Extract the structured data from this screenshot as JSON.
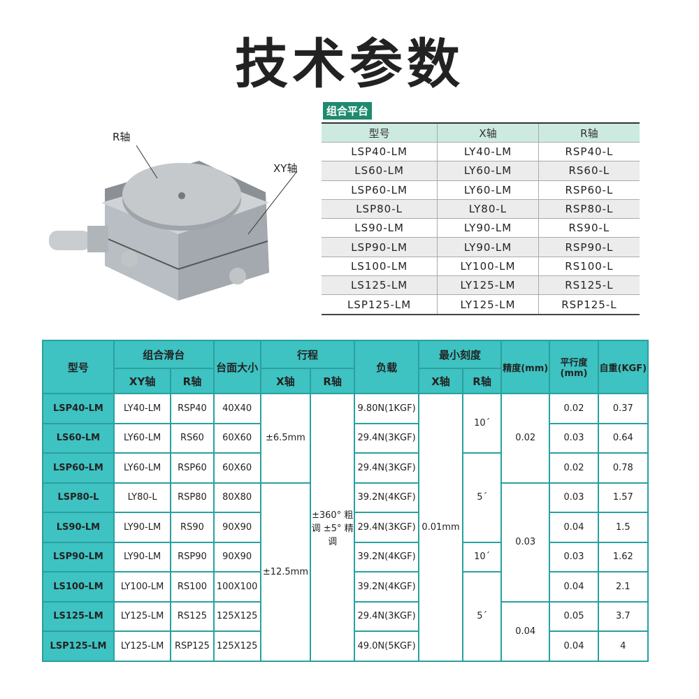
{
  "title": "技术参数",
  "combo": {
    "tag": "组合平台",
    "headers": [
      "型号",
      "X轴",
      "R轴"
    ],
    "rows": [
      [
        "LSP40-LM",
        "LY40-LM",
        "RSP40-L"
      ],
      [
        "LS60-LM",
        "LY60-LM",
        "RS60-L"
      ],
      [
        "LSP60-LM",
        "LY60-LM",
        "RSP60-L"
      ],
      [
        "LSP80-L",
        "LY80-L",
        "RSP80-L"
      ],
      [
        "LS90-LM",
        "LY90-LM",
        "RS90-L"
      ],
      [
        "LSP90-LM",
        "LY90-LM",
        "RSP90-L"
      ],
      [
        "LS100-LM",
        "LY100-LM",
        "RS100-L"
      ],
      [
        "LS125-LM",
        "LY125-LM",
        "RS125-L"
      ],
      [
        "LSP125-LM",
        "LY125-LM",
        "RSP125-L"
      ]
    ]
  },
  "image": {
    "label_r": "R轴",
    "label_xy": "XY轴"
  },
  "spec": {
    "h": {
      "model": "型号",
      "combo": "组合滑台",
      "xy": "XY轴",
      "r": "R轴",
      "size": "台面大小",
      "travel": "行程",
      "tx": "X轴",
      "tr": "R轴",
      "load": "负载",
      "scale": "最小刻度",
      "sx": "X轴",
      "sr": "R轴",
      "precision": "精度(mm)",
      "parallel": "平行度(mm)",
      "weight": "自重(KGF)"
    },
    "rows": [
      {
        "model": "LSP40-LM",
        "xy": "LY40-LM",
        "r": "RSP40",
        "size": "40X40",
        "load": "9.80N(1KGF)",
        "parallel": "0.02",
        "weight": "0.37"
      },
      {
        "model": "LS60-LM",
        "xy": "LY60-LM",
        "r": "RS60",
        "size": "60X60",
        "load": "29.4N(3KGF)",
        "parallel": "0.03",
        "weight": "0.64"
      },
      {
        "model": "LSP60-LM",
        "xy": "LY60-LM",
        "r": "RSP60",
        "size": "60X60",
        "load": "29.4N(3KGF)",
        "parallel": "0.02",
        "weight": "0.78"
      },
      {
        "model": "LSP80-L",
        "xy": "LY80-L",
        "r": "RSP80",
        "size": "80X80",
        "load": "39.2N(4KGF)",
        "parallel": "0.03",
        "weight": "1.57"
      },
      {
        "model": "LS90-LM",
        "xy": "LY90-LM",
        "r": "RS90",
        "size": "90X90",
        "load": "29.4N(3KGF)",
        "parallel": "0.04",
        "weight": "1.5"
      },
      {
        "model": "LSP90-LM",
        "xy": "LY90-LM",
        "r": "RSP90",
        "size": "90X90",
        "load": "39.2N(4KGF)",
        "parallel": "0.03",
        "weight": "1.62"
      },
      {
        "model": "LS100-LM",
        "xy": "LY100-LM",
        "r": "RS100",
        "size": "100X100",
        "load": "39.2N(4KGF)",
        "parallel": "0.04",
        "weight": "2.1"
      },
      {
        "model": "LS125-LM",
        "xy": "LY125-LM",
        "r": "RS125",
        "size": "125X125",
        "load": "29.4N(3KGF)",
        "parallel": "0.05",
        "weight": "3.7"
      },
      {
        "model": "LSP125-LM",
        "xy": "LY125-LM",
        "r": "RSP125",
        "size": "125X125",
        "load": "49.0N(5KGF)",
        "parallel": "0.04",
        "weight": "4"
      }
    ],
    "travel_x": [
      "±6.5mm",
      "±12.5mm"
    ],
    "travel_r": "±360° 粗调 ±5° 精调",
    "scale_x": "0.01mm",
    "scale_r": [
      "10´",
      "5´",
      "10´",
      "5´"
    ],
    "precision": [
      "0.02",
      "0.03",
      "0.04"
    ]
  }
}
